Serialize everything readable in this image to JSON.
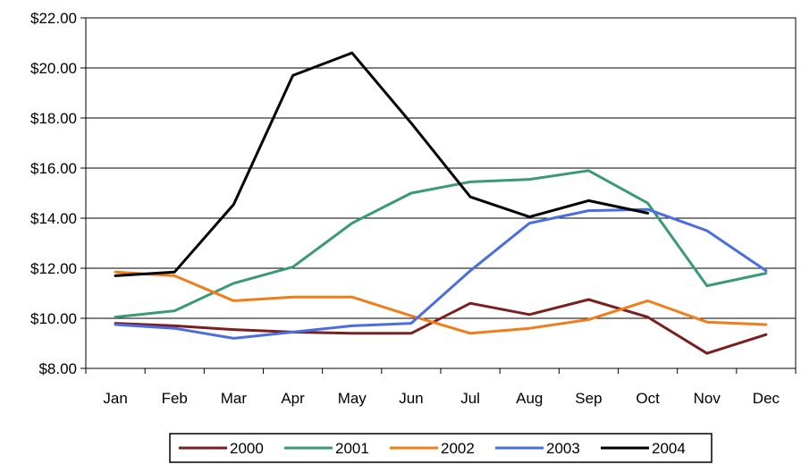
{
  "chart_data": {
    "type": "line",
    "title": "",
    "xlabel": "",
    "ylabel": "",
    "categories": [
      "Jan",
      "Feb",
      "Mar",
      "Apr",
      "May",
      "Jun",
      "Jul",
      "Aug",
      "Sep",
      "Oct",
      "Nov",
      "Dec"
    ],
    "ylim": [
      8,
      22
    ],
    "yticks": [
      8,
      10,
      12,
      14,
      16,
      18,
      20,
      22
    ],
    "ytick_labels": [
      "$8.00",
      "$10.00",
      "$12.00",
      "$14.00",
      "$16.00",
      "$18.00",
      "$20.00",
      "$22.00"
    ],
    "grid": "horizontal",
    "legend_position": "bottom",
    "series": [
      {
        "name": "2000",
        "color": "#7a1f1f",
        "values": [
          9.8,
          9.7,
          9.55,
          9.45,
          9.4,
          9.4,
          10.6,
          10.15,
          10.75,
          10.05,
          8.6,
          9.35
        ]
      },
      {
        "name": "2001",
        "color": "#3a9a73",
        "values": [
          10.05,
          10.3,
          11.4,
          12.05,
          13.8,
          15.0,
          15.45,
          15.55,
          15.9,
          14.6,
          11.3,
          11.8
        ]
      },
      {
        "name": "2002",
        "color": "#f07d1a",
        "values": [
          11.85,
          11.7,
          10.7,
          10.85,
          10.85,
          10.1,
          9.4,
          9.6,
          9.95,
          10.7,
          9.85,
          9.75
        ]
      },
      {
        "name": "2003",
        "color": "#4a6ee0",
        "values": [
          9.75,
          9.6,
          9.2,
          9.45,
          9.7,
          9.8,
          11.9,
          13.8,
          14.3,
          14.35,
          13.5,
          11.9
        ]
      },
      {
        "name": "2004",
        "color": "#000000",
        "values": [
          11.7,
          11.85,
          14.55,
          19.7,
          20.6,
          17.8,
          14.85,
          14.05,
          14.7,
          14.2,
          null,
          null
        ]
      }
    ]
  }
}
